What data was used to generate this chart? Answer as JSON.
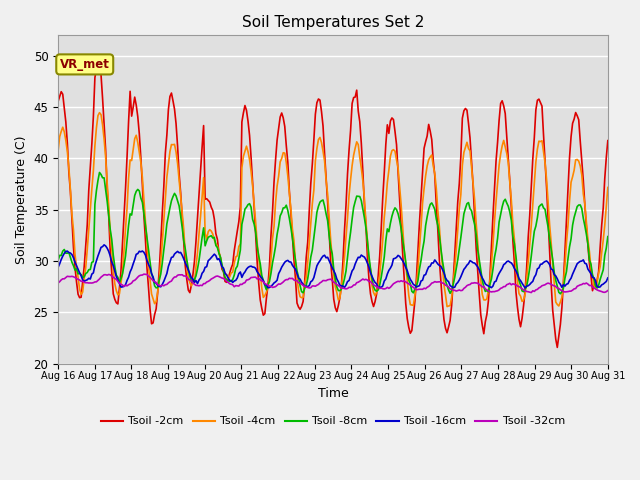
{
  "title": "Soil Temperatures Set 2",
  "xlabel": "Time",
  "ylabel": "Soil Temperature (C)",
  "ylim": [
    20,
    52
  ],
  "yticks": [
    20,
    25,
    30,
    35,
    40,
    45,
    50
  ],
  "bg_color": "#e0e0e0",
  "fig_color": "#f0f0f0",
  "annotation_text": "VR_met",
  "series_colors": [
    "#dd0000",
    "#ff8800",
    "#00bb00",
    "#0000cc",
    "#bb00bb"
  ],
  "series_labels": [
    "Tsoil -2cm",
    "Tsoil -4cm",
    "Tsoil -8cm",
    "Tsoil -16cm",
    "Tsoil -32cm"
  ],
  "x_labels": [
    "Aug 16",
    "Aug 17",
    "Aug 18",
    "Aug 19",
    "Aug 20",
    "Aug 21",
    "Aug 22",
    "Aug 23",
    "Aug 24",
    "Aug 25",
    "Aug 26",
    "Aug 27",
    "Aug 28",
    "Aug 29",
    "Aug 30",
    "Aug 31"
  ],
  "figsize": [
    6.4,
    4.8
  ],
  "dpi": 100
}
